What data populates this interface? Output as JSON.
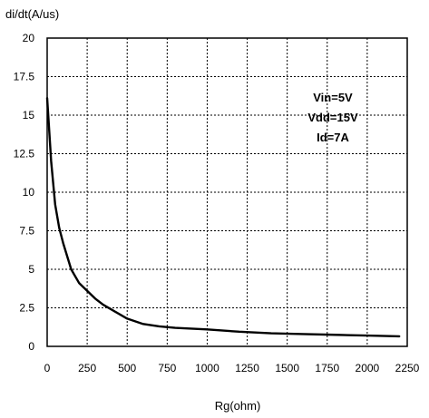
{
  "chart_data": {
    "type": "line",
    "ylabel": "di/dt(A/us)",
    "xlabel": "Rg(ohm)",
    "xlim": [
      0,
      2250
    ],
    "ylim": [
      0,
      20
    ],
    "xticks": [
      "0",
      "250",
      "500",
      "750",
      "1000",
      "1250",
      "1500",
      "1750",
      "2000",
      "2250"
    ],
    "yticks": [
      "0",
      "2.5",
      "5",
      "7.5",
      "10",
      "12.5",
      "15",
      "17.5",
      "20"
    ],
    "grid": true,
    "annotations": [
      "Vin=5V",
      "Vdd=15V",
      "Id=7A"
    ],
    "series": [
      {
        "x": [
          0,
          25,
          50,
          75,
          100,
          150,
          200,
          250,
          300,
          350,
          400,
          500,
          600,
          700,
          800,
          1000,
          1200,
          1400,
          1600,
          1800,
          2000,
          2200
        ],
        "y": [
          16.1,
          12.0,
          9.2,
          7.7,
          6.7,
          5.0,
          4.1,
          3.6,
          3.1,
          2.7,
          2.4,
          1.8,
          1.45,
          1.3,
          1.2,
          1.1,
          0.95,
          0.85,
          0.8,
          0.75,
          0.7,
          0.65
        ]
      }
    ]
  }
}
